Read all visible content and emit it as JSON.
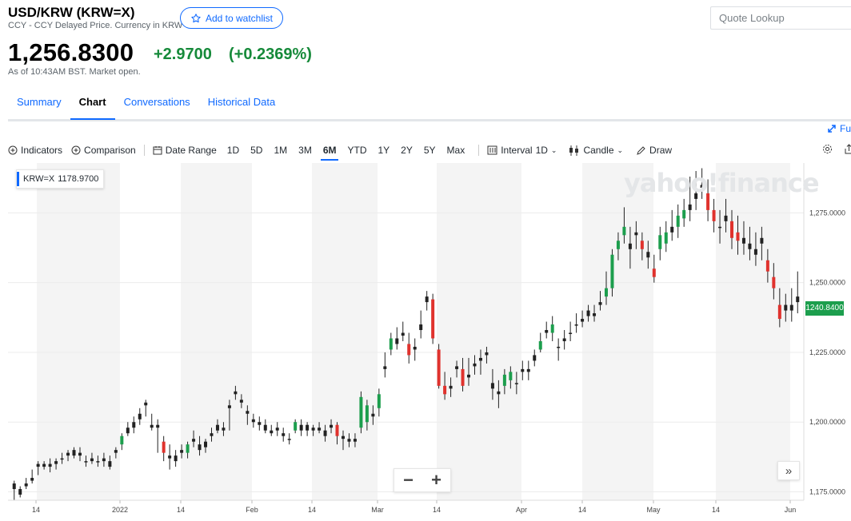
{
  "quote": {
    "title": "USD/KRW (KRW=X)",
    "subtitle": "CCY - CCY Delayed Price. Currency in KRW",
    "watchlist_label": "Add to watchlist",
    "lookup_placeholder": "Quote Lookup",
    "price": "1,256.8300",
    "change": "+2.9700",
    "change_pct": "(+0.2369%)",
    "as_of": "As of 10:43AM BST. Market open.",
    "up_color": "#168a3a"
  },
  "tabs": [
    "Summary",
    "Chart",
    "Conversations",
    "Historical Data"
  ],
  "active_tab": "Chart",
  "fullscreen_label": "Fu",
  "toolbar": {
    "indicators": "Indicators",
    "comparison": "Comparison",
    "date_range": "Date Range",
    "ranges": [
      "1D",
      "5D",
      "1M",
      "3M",
      "6M",
      "YTD",
      "1Y",
      "2Y",
      "5Y",
      "Max"
    ],
    "active_range": "6M",
    "interval_label": "Interval",
    "interval_value": "1D",
    "chart_type": "Candle",
    "draw": "Draw",
    "icons": [
      "settings-icon",
      "share-icon"
    ]
  },
  "chart_data": {
    "type": "candlestick",
    "legend": {
      "symbol": "KRW=X",
      "value": "1178.9700",
      "placement": "top-left"
    },
    "watermark": "yahoo!finance",
    "last_price_label": "1240.8400",
    "last_price": 1240.84,
    "y_ticks": [
      {
        "value": 1275,
        "label": "1,275.0000"
      },
      {
        "value": 1250,
        "label": "1,250.0000"
      },
      {
        "value": 1225,
        "label": "1,225.0000"
      },
      {
        "value": 1200,
        "label": "1,200.0000"
      },
      {
        "value": 1175,
        "label": "1,175.0000"
      }
    ],
    "ylim": [
      1172,
      1290
    ],
    "x_ticks": [
      "14",
      "2022",
      "14",
      "Feb",
      "14",
      "Mar",
      "14",
      "Apr",
      "14",
      "May",
      "14",
      "Jun"
    ],
    "grid": true,
    "up_color": "#1c9e4d",
    "down_color": "#e0322d",
    "candles": [
      [
        1176,
        1179,
        1172,
        1178
      ],
      [
        1176,
        1177,
        1173,
        1174
      ],
      [
        1177,
        1180,
        1176,
        1178
      ],
      [
        1179,
        1183,
        1178,
        1180
      ],
      [
        1184,
        1186,
        1181,
        1185
      ],
      [
        1185,
        1186,
        1183,
        1184
      ],
      [
        1184,
        1187,
        1182,
        1185
      ],
      [
        1185,
        1187,
        1183,
        1186
      ],
      [
        1187,
        1189,
        1185,
        1187
      ],
      [
        1188,
        1190,
        1186,
        1189
      ],
      [
        1188,
        1191,
        1187,
        1190
      ],
      [
        1189,
        1191,
        1186,
        1188
      ],
      [
        1186,
        1188,
        1184,
        1186
      ],
      [
        1186,
        1189,
        1185,
        1187
      ],
      [
        1186,
        1188,
        1184,
        1186
      ],
      [
        1186,
        1189,
        1184,
        1187
      ],
      [
        1186,
        1188,
        1183,
        1184
      ],
      [
        1189,
        1191,
        1187,
        1190
      ],
      [
        1192,
        1196,
        1190,
        1195
      ],
      [
        1196,
        1200,
        1195,
        1198
      ],
      [
        1198,
        1202,
        1196,
        1200
      ],
      [
        1201,
        1205,
        1199,
        1203
      ],
      [
        1206,
        1208,
        1202,
        1207
      ],
      [
        1199,
        1203,
        1197,
        1198
      ],
      [
        1199,
        1201,
        1189,
        1198
      ],
      [
        1193,
        1195,
        1186,
        1189
      ],
      [
        1188,
        1192,
        1183,
        1187
      ],
      [
        1188,
        1190,
        1184,
        1186
      ],
      [
        1189,
        1192,
        1187,
        1190
      ],
      [
        1189,
        1193,
        1187,
        1192
      ],
      [
        1194,
        1197,
        1191,
        1193
      ],
      [
        1192,
        1195,
        1188,
        1190
      ],
      [
        1191,
        1194,
        1189,
        1193
      ],
      [
        1196,
        1198,
        1193,
        1195
      ],
      [
        1199,
        1201,
        1196,
        1197
      ],
      [
        1198,
        1200,
        1195,
        1197
      ],
      [
        1206,
        1208,
        1197,
        1205
      ],
      [
        1210,
        1213,
        1208,
        1211
      ],
      [
        1208,
        1210,
        1205,
        1207
      ],
      [
        1204,
        1206,
        1199,
        1203
      ],
      [
        1200,
        1203,
        1198,
        1201
      ],
      [
        1200,
        1202,
        1197,
        1199
      ],
      [
        1199,
        1201,
        1196,
        1197
      ],
      [
        1197,
        1199,
        1195,
        1196
      ],
      [
        1197,
        1200,
        1195,
        1198
      ],
      [
        1196,
        1198,
        1193,
        1195
      ],
      [
        1194,
        1196,
        1192,
        1194
      ],
      [
        1197,
        1201,
        1196,
        1200
      ],
      [
        1199,
        1201,
        1195,
        1197
      ],
      [
        1197,
        1200,
        1195,
        1199
      ],
      [
        1197,
        1199,
        1195,
        1198
      ],
      [
        1198,
        1200,
        1196,
        1197
      ],
      [
        1197,
        1199,
        1193,
        1195
      ],
      [
        1198,
        1201,
        1196,
        1199
      ],
      [
        1199,
        1200,
        1192,
        1195
      ],
      [
        1195,
        1197,
        1190,
        1194
      ],
      [
        1194,
        1196,
        1191,
        1193
      ],
      [
        1193,
        1196,
        1191,
        1194
      ],
      [
        1198,
        1211,
        1196,
        1209
      ],
      [
        1200,
        1208,
        1197,
        1206
      ],
      [
        1202,
        1206,
        1199,
        1203
      ],
      [
        1205,
        1212,
        1202,
        1210
      ],
      [
        1220,
        1225,
        1216,
        1219
      ],
      [
        1226,
        1232,
        1224,
        1230
      ],
      [
        1228,
        1234,
        1226,
        1230
      ],
      [
        1231,
        1236,
        1229,
        1232
      ],
      [
        1228,
        1232,
        1221,
        1224
      ],
      [
        1226,
        1230,
        1222,
        1227
      ],
      [
        1233,
        1240,
        1230,
        1235
      ],
      [
        1243,
        1247,
        1240,
        1245
      ],
      [
        1244,
        1246,
        1228,
        1230
      ],
      [
        1226,
        1228,
        1212,
        1213
      ],
      [
        1213,
        1218,
        1208,
        1210
      ],
      [
        1212,
        1216,
        1209,
        1213
      ],
      [
        1219,
        1222,
        1216,
        1220
      ],
      [
        1219,
        1223,
        1211,
        1213
      ],
      [
        1217,
        1223,
        1213,
        1216
      ],
      [
        1220,
        1224,
        1217,
        1221
      ],
      [
        1222,
        1226,
        1217,
        1223
      ],
      [
        1224,
        1227,
        1221,
        1225
      ],
      [
        1212,
        1219,
        1208,
        1214
      ],
      [
        1211,
        1215,
        1205,
        1210
      ],
      [
        1213,
        1219,
        1210,
        1217
      ],
      [
        1215,
        1220,
        1212,
        1218
      ],
      [
        1214,
        1218,
        1210,
        1214
      ],
      [
        1218,
        1222,
        1215,
        1219
      ],
      [
        1219,
        1222,
        1215,
        1218
      ],
      [
        1222,
        1226,
        1220,
        1224
      ],
      [
        1226,
        1232,
        1225,
        1229
      ],
      [
        1232,
        1236,
        1230,
        1233
      ],
      [
        1232,
        1238,
        1229,
        1235
      ],
      [
        1227,
        1230,
        1222,
        1227
      ],
      [
        1229,
        1233,
        1226,
        1230
      ],
      [
        1232,
        1236,
        1229,
        1232
      ],
      [
        1235,
        1239,
        1232,
        1235
      ],
      [
        1236,
        1240,
        1234,
        1237
      ],
      [
        1238,
        1242,
        1236,
        1240
      ],
      [
        1238,
        1242,
        1236,
        1239
      ],
      [
        1242,
        1247,
        1240,
        1243
      ],
      [
        1245,
        1254,
        1242,
        1248
      ],
      [
        1248,
        1262,
        1245,
        1260
      ],
      [
        1262,
        1268,
        1258,
        1265
      ],
      [
        1267,
        1277,
        1264,
        1270
      ],
      [
        1264,
        1270,
        1255,
        1262
      ],
      [
        1268,
        1272,
        1262,
        1267
      ],
      [
        1265,
        1268,
        1258,
        1262
      ],
      [
        1261,
        1265,
        1255,
        1259
      ],
      [
        1255,
        1260,
        1250,
        1252
      ],
      [
        1262,
        1270,
        1258,
        1267
      ],
      [
        1264,
        1272,
        1261,
        1268
      ],
      [
        1268,
        1276,
        1265,
        1270
      ],
      [
        1270,
        1278,
        1266,
        1274
      ],
      [
        1273,
        1280,
        1270,
        1276
      ],
      [
        1276,
        1288,
        1272,
        1278
      ],
      [
        1280,
        1290,
        1276,
        1282
      ],
      [
        1284,
        1291,
        1280,
        1285
      ],
      [
        1282,
        1287,
        1272,
        1276
      ],
      [
        1276,
        1280,
        1268,
        1272
      ],
      [
        1270,
        1276,
        1264,
        1270
      ],
      [
        1274,
        1280,
        1268,
        1272
      ],
      [
        1272,
        1276,
        1262,
        1266
      ],
      [
        1268,
        1274,
        1260,
        1265
      ],
      [
        1266,
        1272,
        1260,
        1264
      ],
      [
        1264,
        1270,
        1258,
        1262
      ],
      [
        1262,
        1268,
        1256,
        1260
      ],
      [
        1264,
        1270,
        1258,
        1266
      ],
      [
        1258,
        1262,
        1250,
        1254
      ],
      [
        1252,
        1257,
        1244,
        1248
      ],
      [
        1242,
        1248,
        1234,
        1237
      ],
      [
        1240,
        1246,
        1236,
        1242
      ],
      [
        1240,
        1248,
        1236,
        1242
      ],
      [
        1243,
        1254,
        1239,
        1245
      ]
    ]
  }
}
